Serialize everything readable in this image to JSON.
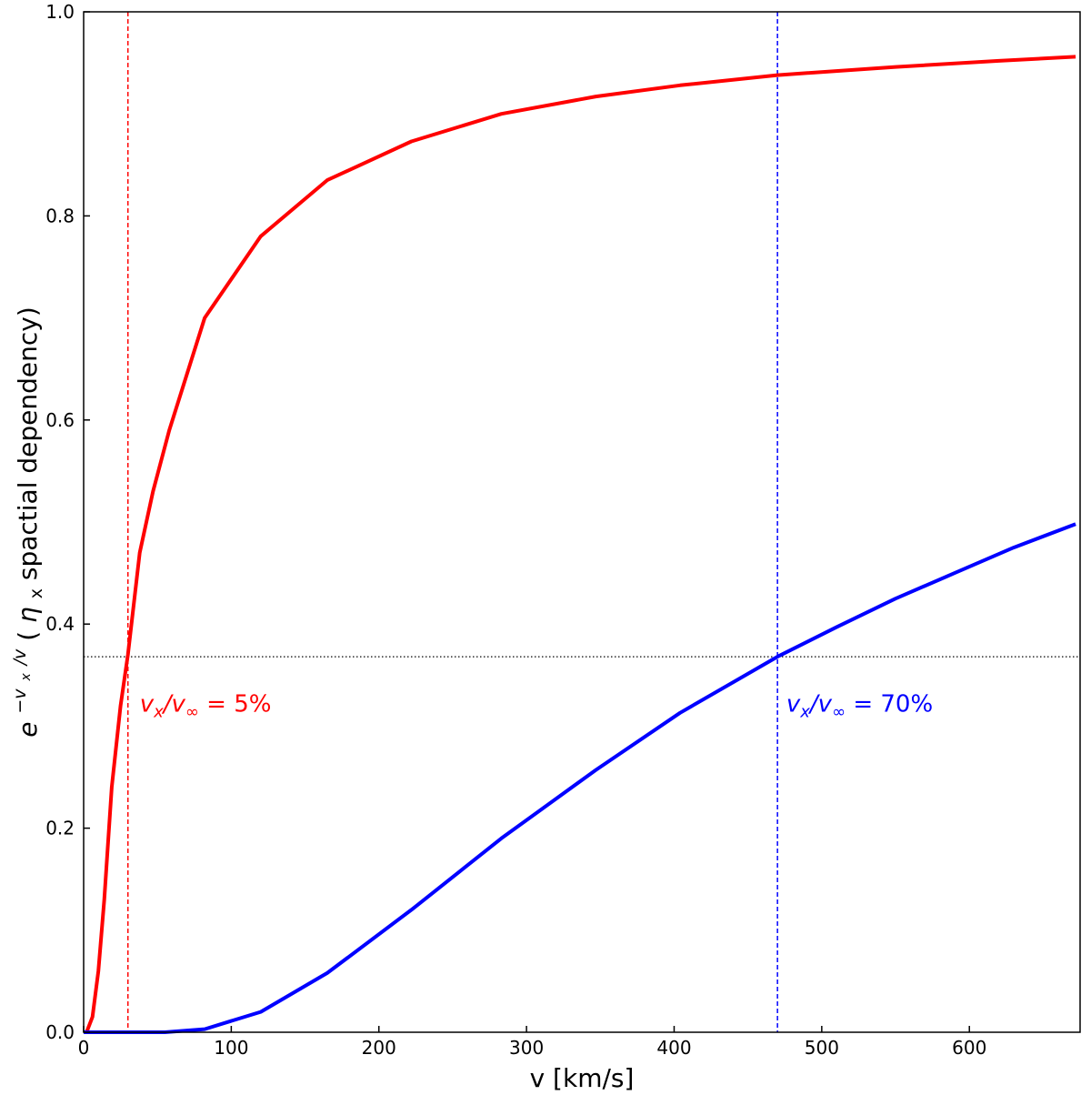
{
  "chart_data": {
    "type": "line",
    "title": "",
    "xlabel": "v [km/s]",
    "ylabel": "e^{-v_x/v} (η_x spactial dependency)",
    "ylabel_parts": {
      "base": "e",
      "exponent": "−v",
      "exponent_sub": "x",
      "exponent_tail": "/v",
      "open": " (",
      "eta": "η",
      "eta_sub": "x",
      "rest": " spactial dependency)"
    },
    "xlim": [
      0,
      675
    ],
    "ylim": [
      0,
      1.0
    ],
    "xticks": [
      0,
      100,
      200,
      300,
      400,
      500,
      600
    ],
    "yticks": [
      0.0,
      0.2,
      0.4,
      0.6,
      0.8,
      1.0
    ],
    "xtick_labels": [
      "0",
      "100",
      "200",
      "300",
      "400",
      "500",
      "600"
    ],
    "ytick_labels": [
      "0.0",
      "0.2",
      "0.4",
      "0.6",
      "0.8",
      "1.0"
    ],
    "grid": false,
    "legend": "none",
    "series": [
      {
        "color": "#ff0000",
        "x": [
          2,
          6,
          10,
          14,
          19,
          25,
          30,
          38,
          47,
          58,
          82,
          120,
          165,
          222,
          283,
          347,
          404,
          470,
          550,
          620,
          672
        ],
        "y": [
          0.0,
          0.015,
          0.06,
          0.13,
          0.24,
          0.32,
          0.37,
          0.47,
          0.53,
          0.59,
          0.7,
          0.78,
          0.835,
          0.873,
          0.9,
          0.917,
          0.928,
          0.938,
          0.946,
          0.952,
          0.956
        ]
      },
      {
        "color": "#0000ff",
        "x": [
          0,
          55,
          82,
          120,
          165,
          222,
          283,
          347,
          404,
          470,
          510,
          550,
          590,
          630,
          672
        ],
        "y": [
          0.0,
          0.0,
          0.003,
          0.02,
          0.058,
          0.12,
          0.19,
          0.257,
          0.313,
          0.368,
          0.397,
          0.425,
          0.45,
          0.475,
          0.498
        ]
      }
    ],
    "vlines": [
      {
        "x": 30,
        "color": "#ff0000",
        "style": "dashed"
      },
      {
        "x": 470,
        "color": "#0000ff",
        "style": "dashed"
      }
    ],
    "hlines": [
      {
        "y": 0.368,
        "color": "#000000",
        "style": "dotted"
      }
    ],
    "annotations": [
      {
        "x": 38,
        "y": 0.322,
        "color": "#ff0000",
        "v": "v",
        "sub1": "x",
        "slash": "/v",
        "sub2": "∞",
        "eq": " = 5%"
      },
      {
        "x": 476,
        "y": 0.322,
        "color": "#0000ff",
        "v": "v",
        "sub1": "x",
        "slash": "/v",
        "sub2": "∞",
        "eq": " = 70%"
      }
    ]
  }
}
